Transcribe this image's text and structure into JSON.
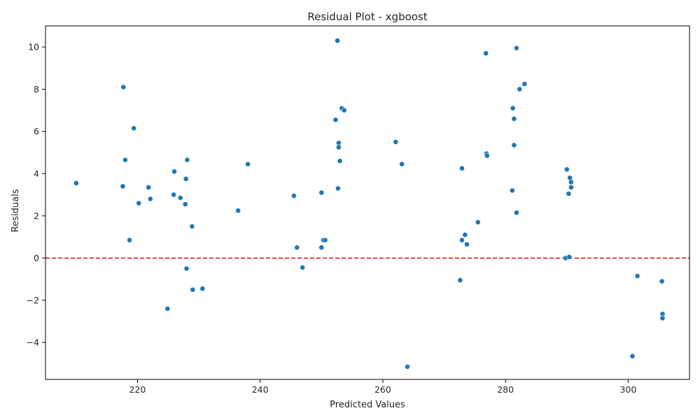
{
  "chart_data": {
    "type": "scatter",
    "title": "Residual Plot - xgboost",
    "xlabel": "Predicted Values",
    "ylabel": "Residuals",
    "xlim": [
      205,
      310
    ],
    "ylim": [
      -5.75,
      11.0
    ],
    "xticks": [
      220,
      240,
      260,
      280,
      300
    ],
    "yticks": [
      -4,
      -2,
      0,
      2,
      4,
      6,
      8,
      10
    ],
    "grid": false,
    "reference_line": {
      "y": 0,
      "color": "#e31a1c",
      "style": "dashed"
    },
    "point_color": "#1f77b4",
    "points": [
      {
        "x": 210.0,
        "y": 3.55
      },
      {
        "x": 217.6,
        "y": 3.4
      },
      {
        "x": 217.7,
        "y": 8.1
      },
      {
        "x": 218.0,
        "y": 4.65
      },
      {
        "x": 218.7,
        "y": 0.85
      },
      {
        "x": 219.4,
        "y": 6.15
      },
      {
        "x": 220.2,
        "y": 2.6
      },
      {
        "x": 221.8,
        "y": 3.35
      },
      {
        "x": 222.1,
        "y": 2.8
      },
      {
        "x": 224.9,
        "y": -2.4
      },
      {
        "x": 225.9,
        "y": 3.0
      },
      {
        "x": 226.0,
        "y": 4.1
      },
      {
        "x": 227.0,
        "y": 2.85
      },
      {
        "x": 227.8,
        "y": 2.55
      },
      {
        "x": 227.9,
        "y": 3.75
      },
      {
        "x": 228.0,
        "y": -0.5
      },
      {
        "x": 228.1,
        "y": 4.65
      },
      {
        "x": 228.9,
        "y": 1.5
      },
      {
        "x": 229.0,
        "y": -1.5
      },
      {
        "x": 230.6,
        "y": -1.45
      },
      {
        "x": 236.4,
        "y": 2.25
      },
      {
        "x": 238.0,
        "y": 4.45
      },
      {
        "x": 245.5,
        "y": 2.95
      },
      {
        "x": 246.0,
        "y": 0.5
      },
      {
        "x": 246.9,
        "y": -0.45
      },
      {
        "x": 250.0,
        "y": 3.1
      },
      {
        "x": 250.0,
        "y": 0.5
      },
      {
        "x": 250.3,
        "y": 0.85
      },
      {
        "x": 250.6,
        "y": 0.85
      },
      {
        "x": 252.3,
        "y": 6.55
      },
      {
        "x": 252.6,
        "y": 10.3
      },
      {
        "x": 252.7,
        "y": 3.3
      },
      {
        "x": 252.8,
        "y": 5.45
      },
      {
        "x": 252.8,
        "y": 5.25
      },
      {
        "x": 253.0,
        "y": 4.6
      },
      {
        "x": 253.3,
        "y": 7.1
      },
      {
        "x": 253.7,
        "y": 7.0
      },
      {
        "x": 262.1,
        "y": 5.5
      },
      {
        "x": 263.1,
        "y": 4.45
      },
      {
        "x": 264.0,
        "y": -5.15
      },
      {
        "x": 272.6,
        "y": -1.05
      },
      {
        "x": 272.9,
        "y": 4.25
      },
      {
        "x": 272.9,
        "y": 0.85
      },
      {
        "x": 273.4,
        "y": 1.1
      },
      {
        "x": 273.7,
        "y": 0.65
      },
      {
        "x": 275.5,
        "y": 1.7
      },
      {
        "x": 276.8,
        "y": 9.7
      },
      {
        "x": 276.9,
        "y": 4.95
      },
      {
        "x": 277.0,
        "y": 4.85
      },
      {
        "x": 281.1,
        "y": 3.2
      },
      {
        "x": 281.2,
        "y": 7.1
      },
      {
        "x": 281.4,
        "y": 6.6
      },
      {
        "x": 281.4,
        "y": 5.35
      },
      {
        "x": 281.8,
        "y": 9.95
      },
      {
        "x": 281.8,
        "y": 2.15
      },
      {
        "x": 282.3,
        "y": 8.0
      },
      {
        "x": 283.1,
        "y": 8.25
      },
      {
        "x": 289.8,
        "y": 0.0
      },
      {
        "x": 290.0,
        "y": 4.2
      },
      {
        "x": 290.3,
        "y": 3.05
      },
      {
        "x": 290.4,
        "y": 0.05
      },
      {
        "x": 290.5,
        "y": 3.8
      },
      {
        "x": 290.7,
        "y": 3.6
      },
      {
        "x": 290.7,
        "y": 3.35
      },
      {
        "x": 300.7,
        "y": -4.65
      },
      {
        "x": 301.5,
        "y": -0.85
      },
      {
        "x": 305.5,
        "y": -1.1
      },
      {
        "x": 305.6,
        "y": -2.65
      },
      {
        "x": 305.6,
        "y": -2.85
      }
    ]
  }
}
